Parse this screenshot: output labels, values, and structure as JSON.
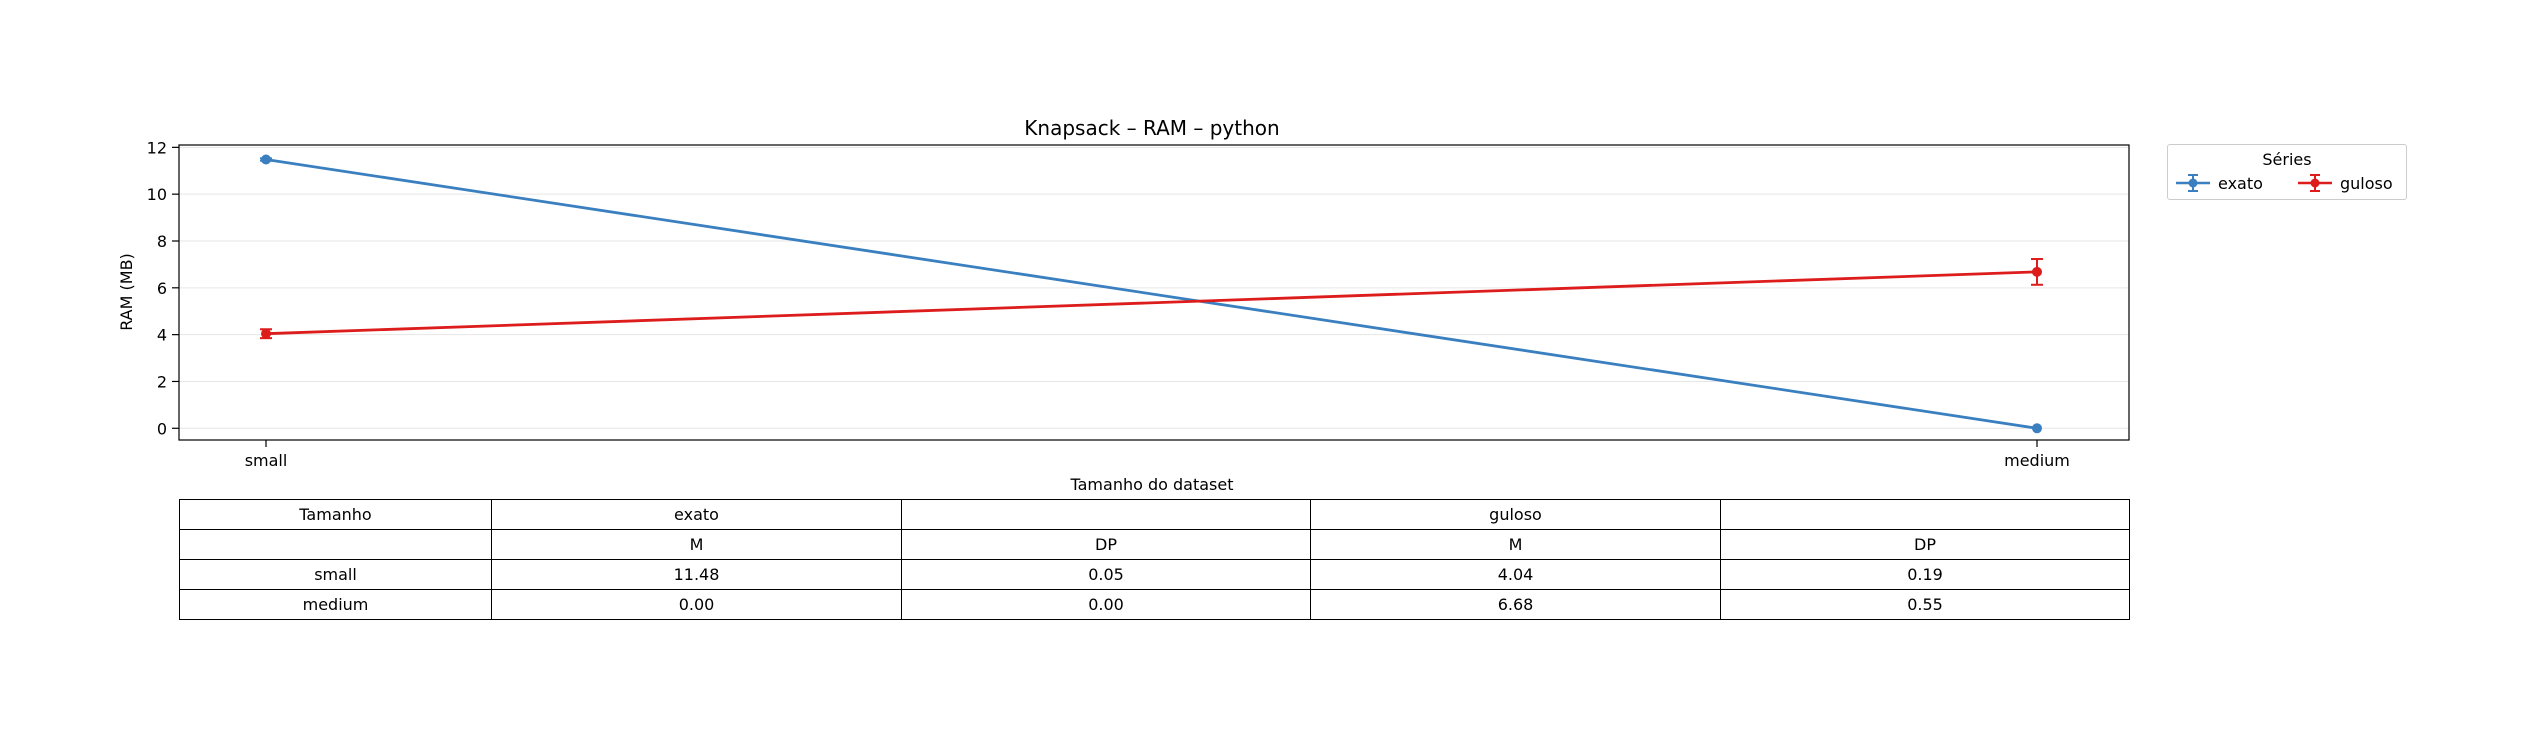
{
  "chart_data": {
    "type": "line",
    "title": "Knapsack – RAM – python",
    "xlabel": "Tamanho do dataset",
    "ylabel": "RAM (MB)",
    "categories": [
      "small",
      "medium"
    ],
    "ylim": [
      -0.5,
      12.1
    ],
    "yticks": [
      0,
      2,
      4,
      6,
      8,
      10,
      12
    ],
    "grid": "horizontal",
    "series": [
      {
        "name": "exato",
        "color": "#3a7fbf",
        "values": [
          11.48,
          0.0
        ],
        "errors": [
          0.05,
          0.0
        ]
      },
      {
        "name": "guloso",
        "color": "#dd1c1c",
        "values": [
          4.04,
          6.68
        ],
        "errors": [
          0.19,
          0.55
        ]
      }
    ],
    "legend": {
      "title": "Séries",
      "placement": "outside-top-right"
    }
  },
  "table": {
    "header_row_1": [
      "Tamanho",
      "exato",
      "",
      "guloso",
      ""
    ],
    "header_row_2": [
      "",
      "M",
      "DP",
      "M",
      "DP"
    ],
    "rows": [
      [
        "small",
        "11.48",
        "0.05",
        "4.04",
        "0.19"
      ],
      [
        "medium",
        "0.00",
        "0.00",
        "6.68",
        "0.55"
      ]
    ]
  }
}
